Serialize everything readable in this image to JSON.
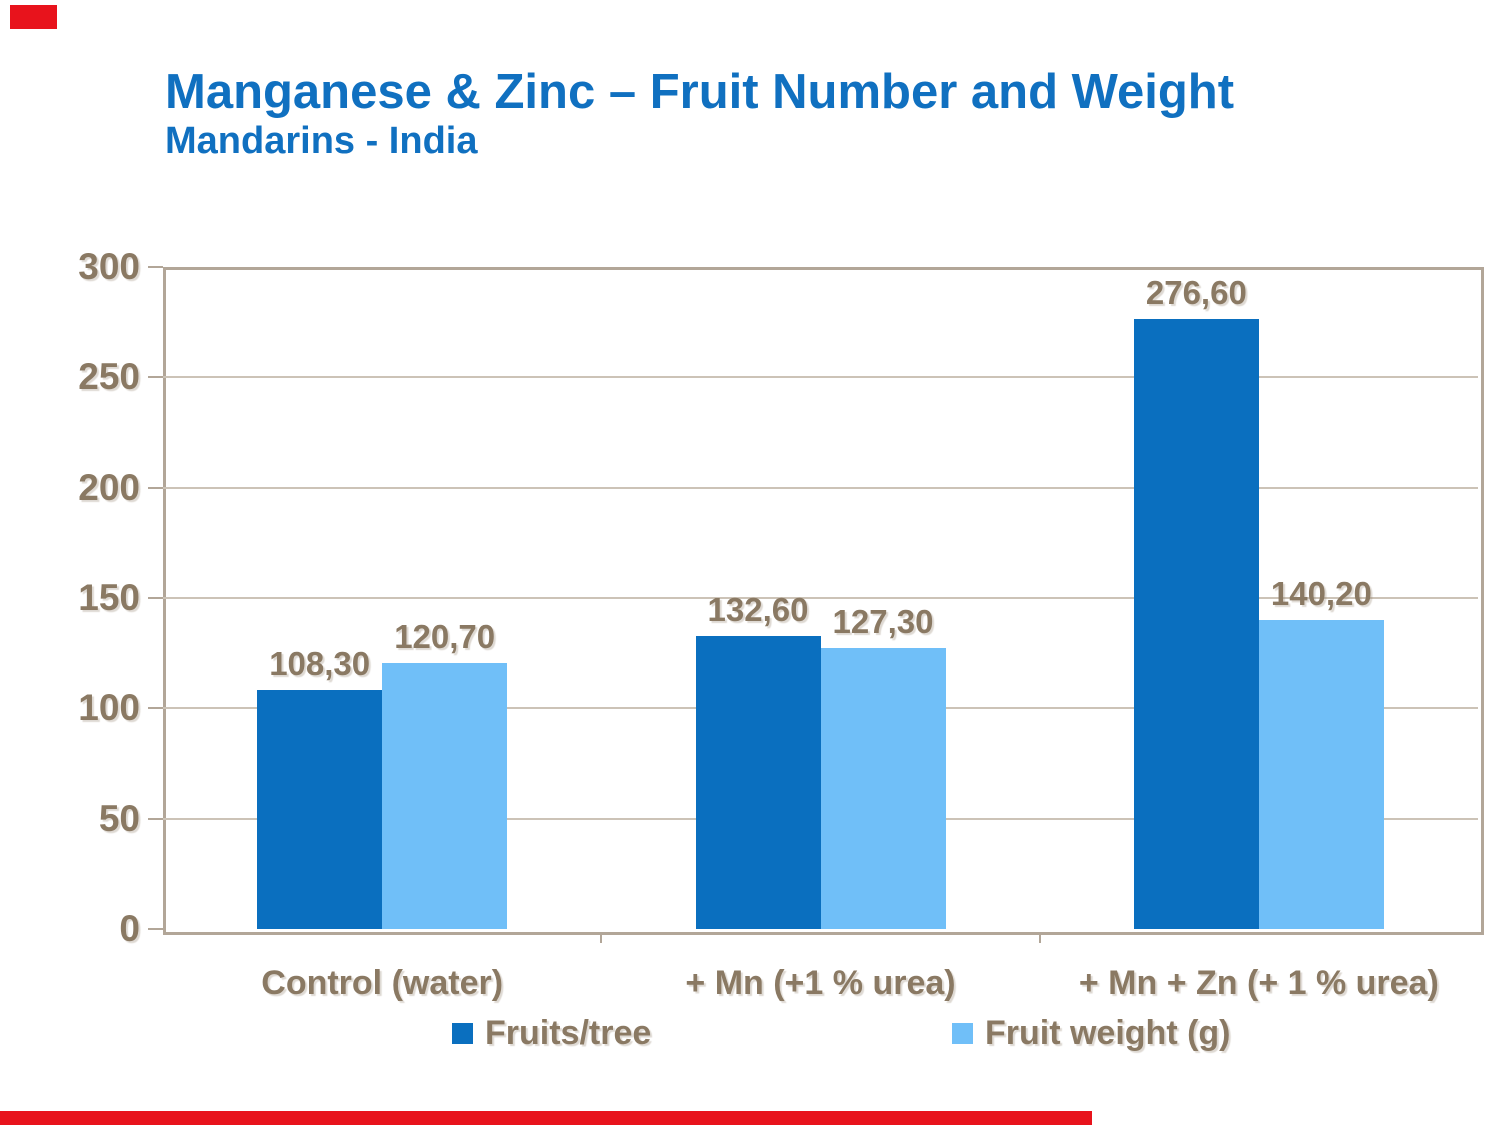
{
  "header": {
    "note": "slide header is the chart title block"
  },
  "chart_data": {
    "type": "bar",
    "title": "Manganese & Zinc – Fruit Number and Weight",
    "subtitle": "Mandarins - India",
    "categories": [
      "Control (water)",
      "+ Mn (+1 % urea)",
      "+ Mn + Zn (+ 1 % urea)"
    ],
    "series": [
      {
        "name": "Fruits/tree",
        "color": "#0A6FBF",
        "values": [
          108.3,
          132.6,
          276.6
        ],
        "labels": [
          "108,30",
          "132,60",
          "276,60"
        ]
      },
      {
        "name": "Fruit weight (g)",
        "color": "#70BFF8",
        "values": [
          120.7,
          127.3,
          140.2
        ],
        "labels": [
          "120,70",
          "127,30",
          "140,20"
        ]
      }
    ],
    "xlabel": "",
    "ylabel": "",
    "ylim": [
      0,
      300
    ],
    "yticks": [
      0,
      50,
      100,
      150,
      200,
      250,
      300
    ],
    "ytick_labels": [
      "0",
      "50",
      "100",
      "150",
      "200",
      "250",
      "300"
    ],
    "grid": true,
    "legend_position": "bottom"
  },
  "style": {
    "title_color": "#1070C0",
    "label_color": "#8A7963",
    "frame_color": "#B2A698",
    "gridline_color": "#CCC3B7",
    "accent_red": "#E8131C",
    "background": "#FFFFFF"
  }
}
